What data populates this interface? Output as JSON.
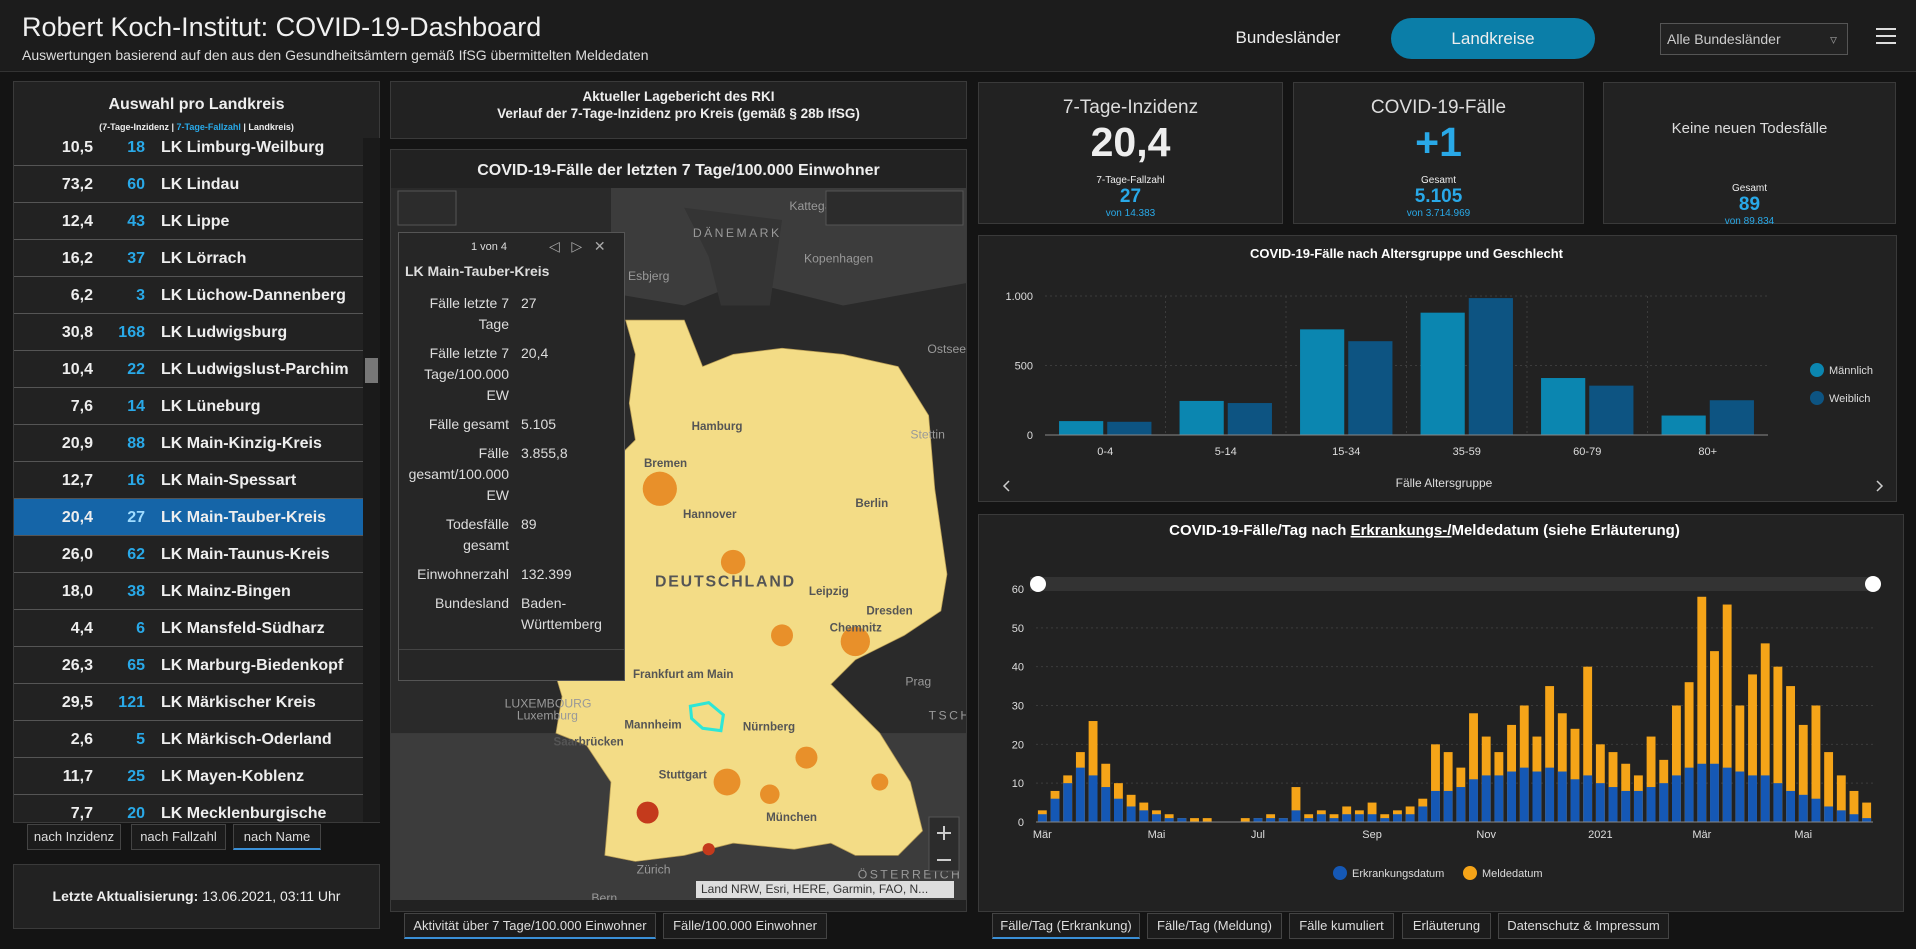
{
  "header": {
    "title": "Robert Koch-Institut: COVID-19-Dashboard",
    "subtitle": "Auswertungen basierend auf den aus den Gesundheitsämtern gemäß IfSG übermittelten Meldedaten",
    "nav": [
      "Bundesländer",
      "Landkreise"
    ],
    "dropdown": "Alle Bundesländer"
  },
  "district_list": {
    "title": "Auswahl pro Landkreis",
    "legend": [
      "(7-Tage-Inzidenz",
      "7-Tage-Fallzahl",
      "Landkreis)"
    ],
    "rows": [
      [
        "10,5",
        "18",
        "LK Limburg-Weilburg"
      ],
      [
        "73,2",
        "60",
        "LK Lindau"
      ],
      [
        "12,4",
        "43",
        "LK Lippe"
      ],
      [
        "16,2",
        "37",
        "LK Lörrach"
      ],
      [
        "6,2",
        "3",
        "LK Lüchow-Dannenberg"
      ],
      [
        "30,8",
        "168",
        "LK Ludwigsburg"
      ],
      [
        "10,4",
        "22",
        "LK Ludwigslust-Parchim"
      ],
      [
        "7,6",
        "14",
        "LK Lüneburg"
      ],
      [
        "20,9",
        "88",
        "LK Main-Kinzig-Kreis"
      ],
      [
        "12,7",
        "16",
        "LK Main-Spessart"
      ],
      [
        "20,4",
        "27",
        "LK Main-Tauber-Kreis"
      ],
      [
        "26,0",
        "62",
        "LK Main-Taunus-Kreis"
      ],
      [
        "18,0",
        "38",
        "LK Mainz-Bingen"
      ],
      [
        "4,4",
        "6",
        "LK Mansfeld-Südharz"
      ],
      [
        "26,3",
        "65",
        "LK Marburg-Biedenkopf"
      ],
      [
        "29,5",
        "121",
        "LK Märkischer Kreis"
      ],
      [
        "2,6",
        "5",
        "LK Märkisch-Oderland"
      ],
      [
        "11,7",
        "25",
        "LK Mayen-Koblenz"
      ],
      [
        "7,7",
        "20",
        "LK Mecklenburgische"
      ]
    ],
    "selected_index": 10,
    "sort_buttons": [
      "nach Inzidenz",
      "nach Fallzahl",
      "nach Name"
    ],
    "active_sort": 2,
    "last_update": {
      "label": "Letzte Aktualisierung:",
      "value": "13.06.2021, 03:11 Uhr"
    }
  },
  "report": {
    "line1": "Aktueller Lagebericht des RKI",
    "line2": "Verlauf der 7-Tage-Inzidenz pro Kreis (gemäß § 28b IfSG)"
  },
  "map": {
    "title": "COVID-19-Fälle der letzten 7 Tage/100.000 Einwohner",
    "labels": [
      "Kattegat",
      "DÄNEMARK",
      "Kopenhagen",
      "Esbjerg",
      "Ostsee",
      "Hamburg",
      "Bremen",
      "Stettin",
      "Hannover",
      "Berlin",
      "DEUTSCHLAND",
      "Leipzig",
      "Dresden",
      "Chemnitz",
      "Prag",
      "Frankfurt am Main",
      "TSCH",
      "LUXEMBOURG",
      "Luxemburg",
      "Saarbrücken",
      "Mannheim",
      "Nürnberg",
      "Stuttgart",
      "München",
      "Zürich",
      "Bern",
      "ÖSTERREICH"
    ],
    "popup": {
      "counter": "1 von 4",
      "title": "LK Main-Tauber-Kreis",
      "fields": [
        [
          "Fälle letzte 7 Tage",
          "27"
        ],
        [
          "Fälle letzte 7 Tage/100.000 EW",
          "20,4"
        ],
        [
          "Fälle gesamt",
          "5.105"
        ],
        [
          "Fälle gesamt/100.000 EW",
          "3.855,8"
        ],
        [
          "Todesfälle gesamt",
          "89"
        ],
        [
          "Einwohnerzahl",
          "132.399"
        ],
        [
          "Bundesland",
          "Baden-Württemberg"
        ]
      ]
    },
    "attribution": "Land NRW, Esri, HERE, Garmin, FAO, N...",
    "tabs": [
      "Aktivität über 7 Tage/100.000 Einwohner",
      "Fälle/100.000 Einwohner"
    ],
    "active_tab": 0
  },
  "cards": [
    {
      "title": "7-Tage-Inzidenz",
      "value": "20,4",
      "sub_label": "7-Tage-Fallzahl",
      "sub_value": "27",
      "sub_note": "von 14.383"
    },
    {
      "title": "COVID-19-Fälle",
      "value": "+1",
      "sub_label": "Gesamt",
      "sub_value": "5.105",
      "sub_note": "von 3.714.969"
    },
    {
      "title": "Keine neuen Todesfälle",
      "sub_label": "Gesamt",
      "sub_value": "89",
      "sub_note": "von 89.834"
    }
  ],
  "chart_data": [
    {
      "type": "bar",
      "barmode": "group",
      "title": "COVID-19-Fälle nach Altersgruppe und Geschlecht",
      "xlabel": "Fälle Altersgruppe",
      "categories": [
        "0-4",
        "5-14",
        "15-34",
        "35-59",
        "60-79",
        "80+"
      ],
      "series": [
        {
          "name": "Männlich",
          "color": "#0b86b0",
          "values": [
            100,
            245,
            760,
            880,
            410,
            140
          ]
        },
        {
          "name": "Weiblich",
          "color": "#0d5482",
          "values": [
            95,
            230,
            675,
            985,
            355,
            250
          ]
        }
      ],
      "ylim": [
        0,
        1000
      ],
      "yticks": [
        0,
        500,
        {
          "value": 1000,
          "label": "1.000"
        }
      ],
      "grid": true,
      "legend": "right"
    },
    {
      "type": "bar",
      "barmode": "overlay",
      "title": "COVID-19-Fälle/Tag nach",
      "title_link": "Erkrankungs-/",
      "title_end": "Meldedatum (siehe Erläuterung)",
      "categories": [
        "Mär",
        null,
        null,
        null,
        null,
        null,
        null,
        null,
        null,
        "Mai",
        null,
        null,
        null,
        null,
        null,
        null,
        null,
        "Jul",
        null,
        null,
        null,
        null,
        null,
        null,
        null,
        null,
        "Sep",
        null,
        null,
        null,
        null,
        null,
        null,
        null,
        null,
        "Nov",
        null,
        null,
        null,
        null,
        null,
        null,
        null,
        null,
        "2021",
        null,
        null,
        null,
        null,
        null,
        null,
        null,
        "Mär",
        null,
        null,
        null,
        null,
        null,
        null,
        null,
        "Mai",
        null,
        null,
        null,
        null,
        null
      ],
      "series": [
        {
          "name": "Erkrankungsdatum",
          "color": "#1558b5",
          "values": [
            2,
            6,
            10,
            14,
            12,
            9,
            6,
            4,
            3,
            2,
            1,
            1,
            0,
            0,
            0,
            0,
            0,
            1,
            1,
            1,
            3,
            1,
            2,
            1,
            2,
            2,
            2,
            1,
            2,
            2,
            4,
            8,
            8,
            9,
            11,
            12,
            12,
            13,
            14,
            13,
            14,
            13,
            11,
            12,
            10,
            9,
            8,
            8,
            9,
            10,
            12,
            14,
            15,
            15,
            14,
            13,
            12,
            12,
            10,
            8,
            7,
            6,
            4,
            3,
            2,
            1
          ]
        },
        {
          "name": "Meldedatum",
          "color": "#f5a418",
          "values": [
            3,
            8,
            12,
            18,
            26,
            15,
            10,
            7,
            5,
            3,
            2,
            1,
            1,
            1,
            0,
            0,
            1,
            1,
            2,
            1,
            9,
            2,
            3,
            2,
            4,
            3,
            5,
            2,
            3,
            4,
            6,
            20,
            18,
            14,
            28,
            22,
            18,
            25,
            30,
            22,
            35,
            28,
            24,
            40,
            20,
            18,
            15,
            12,
            22,
            16,
            30,
            36,
            58,
            44,
            56,
            30,
            38,
            46,
            40,
            35,
            25,
            30,
            18,
            12,
            8,
            5
          ]
        }
      ],
      "ylim": [
        0,
        60
      ],
      "yticks": [
        0,
        10,
        20,
        30,
        40,
        50,
        60
      ],
      "grid": true,
      "legend": "bottom"
    }
  ],
  "bottom_tabs": [
    "Fälle/Tag (Erkrankung)",
    "Fälle/Tag (Meldung)",
    "Fälle kumuliert",
    "Erläuterung",
    "Datenschutz & Impressum"
  ],
  "active_bottom_tab": 0
}
